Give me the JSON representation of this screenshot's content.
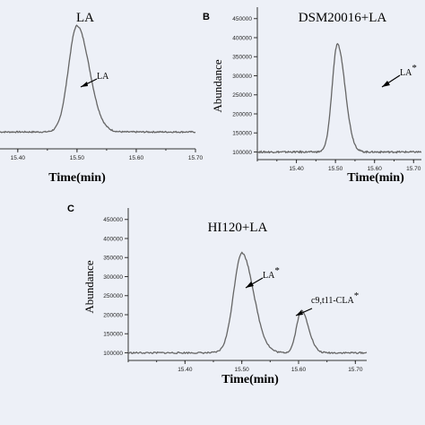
{
  "chart_data": [
    {
      "panel": "",
      "type": "line",
      "title": "LA",
      "xlabel": "Time(min)",
      "ylabel": "",
      "xticks": [
        "15.40",
        "15.50",
        "15.60",
        "15.70"
      ],
      "yticks": [],
      "xlim": [
        15.37,
        15.7
      ],
      "ylim": [
        60000,
        480000
      ],
      "baseline": 110000,
      "peaks": [
        {
          "x": 15.5,
          "y": 425000,
          "label": "LA",
          "sup": ""
        }
      ]
    },
    {
      "panel": "B",
      "type": "line",
      "title": "DSM20016+LA",
      "xlabel": "Time(min)",
      "ylabel": "Abundance",
      "xticks": [
        "15.40",
        "15.50",
        "15.60",
        "15.70"
      ],
      "yticks": [
        100000,
        150000,
        200000,
        250000,
        300000,
        350000,
        400000,
        450000
      ],
      "xlim": [
        15.3,
        15.72
      ],
      "ylim": [
        80000,
        480000
      ],
      "baseline": 100000,
      "peaks": [
        {
          "x": 15.505,
          "y": 382000,
          "label": "LA",
          "sup": "*"
        }
      ]
    },
    {
      "panel": "C",
      "type": "line",
      "title": "HI120+LA",
      "xlabel": "Time(min)",
      "ylabel": "Abundance",
      "xticks": [
        "15.40",
        "15.50",
        "15.60",
        "15.70"
      ],
      "yticks": [
        100000,
        150000,
        200000,
        250000,
        300000,
        350000,
        400000,
        450000
      ],
      "xlim": [
        15.3,
        15.72
      ],
      "ylim": [
        80000,
        480000
      ],
      "baseline": 100000,
      "peaks": [
        {
          "x": 15.5,
          "y": 362000,
          "label": "LA",
          "sup": "*"
        },
        {
          "x": 15.605,
          "y": 210000,
          "label": "c9,t11-CLA",
          "sup": "*"
        }
      ]
    }
  ]
}
